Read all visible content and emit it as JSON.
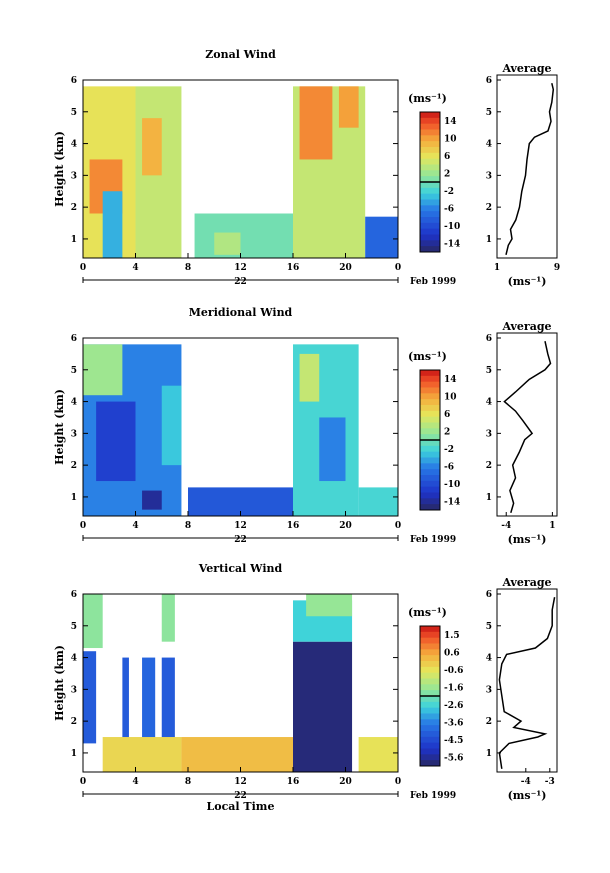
{
  "chart_data": [
    {
      "type": "heatmap",
      "title": "Zonal Wind",
      "ylabel": "Height (km)",
      "xlabel": "",
      "date_label": "22",
      "month_label": "Feb 1999",
      "x_ticks": [
        "0",
        "4",
        "8",
        "12",
        "16",
        "20",
        "0"
      ],
      "xlim": [
        0,
        24
      ],
      "y_ticks": [
        "1",
        "2",
        "3",
        "4",
        "5",
        "6"
      ],
      "ylim": [
        0.4,
        6
      ],
      "colorbar": {
        "unit": "(ms⁻¹)",
        "ticks": [
          "14",
          "10",
          "6",
          "2",
          "-2",
          "-6",
          "-10",
          "-14"
        ],
        "vmin": -16,
        "vmax": 16
      },
      "data_blocks": [
        {
          "x0": 0,
          "x1": 4,
          "y0": 0.4,
          "y1": 5.8,
          "value": 6
        },
        {
          "x0": 0.5,
          "x1": 3,
          "y0": 1.8,
          "y1": 3.5,
          "value": 11
        },
        {
          "x0": 1.5,
          "x1": 3,
          "y0": 0.4,
          "y1": 2.5,
          "value": -4
        },
        {
          "x0": 4,
          "x1": 7.5,
          "y0": 0.4,
          "y1": 5.8,
          "value": 4
        },
        {
          "x0": 4.5,
          "x1": 6,
          "y0": 3,
          "y1": 4.8,
          "value": 9
        },
        {
          "x0": 8.5,
          "x1": 16,
          "y0": 0.4,
          "y1": 1.8,
          "value": 0
        },
        {
          "x0": 10,
          "x1": 12,
          "y0": 0.5,
          "y1": 1.2,
          "value": 3
        },
        {
          "x0": 16,
          "x1": 21.5,
          "y0": 0.4,
          "y1": 5.8,
          "value": 4
        },
        {
          "x0": 16.5,
          "x1": 19,
          "y0": 3.5,
          "y1": 5.8,
          "value": 11
        },
        {
          "x0": 19.5,
          "x1": 21,
          "y0": 4.5,
          "y1": 5.8,
          "value": 10
        },
        {
          "x0": 21.5,
          "x1": 24,
          "y0": 0.4,
          "y1": 1.7,
          "value": -8
        }
      ],
      "profile": {
        "title": "Average",
        "xlabel": "(ms⁻¹)",
        "x_ticks": [
          "1",
          "9"
        ],
        "xlim": [
          1,
          9
        ],
        "y_ticks": [
          "1",
          "2",
          "3",
          "4",
          "5",
          "6"
        ],
        "ylim": [
          0.4,
          6
        ],
        "points": [
          [
            2.2,
            0.5
          ],
          [
            2.5,
            0.8
          ],
          [
            3.0,
            1.0
          ],
          [
            2.8,
            1.3
          ],
          [
            3.5,
            1.6
          ],
          [
            4.0,
            2.0
          ],
          [
            4.3,
            2.5
          ],
          [
            4.8,
            3.0
          ],
          [
            5.0,
            3.5
          ],
          [
            5.3,
            4.0
          ],
          [
            6.0,
            4.2
          ],
          [
            7.8,
            4.4
          ],
          [
            8.2,
            4.7
          ],
          [
            8.0,
            5.0
          ],
          [
            8.3,
            5.3
          ],
          [
            8.5,
            5.7
          ],
          [
            8.3,
            5.9
          ]
        ]
      }
    },
    {
      "type": "heatmap",
      "title": "Meridional Wind",
      "ylabel": "Height (km)",
      "xlabel": "",
      "date_label": "22",
      "month_label": "Feb 1999",
      "x_ticks": [
        "0",
        "4",
        "8",
        "12",
        "16",
        "20",
        "0"
      ],
      "xlim": [
        0,
        24
      ],
      "y_ticks": [
        "1",
        "2",
        "3",
        "4",
        "5",
        "6"
      ],
      "ylim": [
        0.4,
        6
      ],
      "colorbar": {
        "unit": "(ms⁻¹)",
        "ticks": [
          "14",
          "10",
          "6",
          "2",
          "-2",
          "-6",
          "-10",
          "-14"
        ],
        "vmin": -16,
        "vmax": 16
      },
      "data_blocks": [
        {
          "x0": 0,
          "x1": 7.5,
          "y0": 0.4,
          "y1": 5.8,
          "value": -6
        },
        {
          "x0": 0,
          "x1": 3,
          "y0": 4.2,
          "y1": 5.8,
          "value": 2
        },
        {
          "x0": 1,
          "x1": 4,
          "y0": 1.5,
          "y1": 4.0,
          "value": -11
        },
        {
          "x0": 4.5,
          "x1": 6,
          "y0": 0.6,
          "y1": 1.2,
          "value": -14
        },
        {
          "x0": 6,
          "x1": 7.5,
          "y0": 2,
          "y1": 4.5,
          "value": -3
        },
        {
          "x0": 8,
          "x1": 16,
          "y0": 0.4,
          "y1": 1.3,
          "value": -9
        },
        {
          "x0": 16,
          "x1": 21,
          "y0": 0.4,
          "y1": 5.8,
          "value": -2
        },
        {
          "x0": 16.5,
          "x1": 18,
          "y0": 4.0,
          "y1": 5.5,
          "value": 4
        },
        {
          "x0": 18,
          "x1": 20,
          "y0": 1.5,
          "y1": 3.5,
          "value": -6
        },
        {
          "x0": 21,
          "x1": 24,
          "y0": 0.4,
          "y1": 1.3,
          "value": -2
        }
      ],
      "profile": {
        "title": "Average",
        "xlabel": "(ms⁻¹)",
        "x_ticks": [
          "-4",
          "1"
        ],
        "xlim": [
          -5,
          1.5
        ],
        "y_ticks": [
          "1",
          "2",
          "3",
          "4",
          "5",
          "6"
        ],
        "ylim": [
          0.4,
          6
        ],
        "points": [
          [
            -3.5,
            0.5
          ],
          [
            -3.2,
            0.8
          ],
          [
            -3.6,
            1.2
          ],
          [
            -3.0,
            1.6
          ],
          [
            -3.3,
            2.0
          ],
          [
            -2.6,
            2.4
          ],
          [
            -2.0,
            2.8
          ],
          [
            -1.2,
            3.0
          ],
          [
            -2.2,
            3.4
          ],
          [
            -3.0,
            3.7
          ],
          [
            -4.2,
            4.0
          ],
          [
            -3.0,
            4.3
          ],
          [
            -1.5,
            4.7
          ],
          [
            0.2,
            5.0
          ],
          [
            0.8,
            5.2
          ],
          [
            0.5,
            5.5
          ],
          [
            0.2,
            5.9
          ]
        ]
      }
    },
    {
      "type": "heatmap",
      "title": "Vertical Wind",
      "ylabel": "Height (km)",
      "xlabel": "Local Time",
      "date_label": "22",
      "month_label": "Feb 1999",
      "x_ticks": [
        "0",
        "4",
        "8",
        "12",
        "16",
        "20",
        "0"
      ],
      "xlim": [
        0,
        24
      ],
      "y_ticks": [
        "1",
        "2",
        "3",
        "4",
        "5",
        "6"
      ],
      "ylim": [
        0.4,
        6
      ],
      "colorbar": {
        "unit": "(ms⁻¹)",
        "ticks": [
          "1.5",
          "0.6",
          "-0.6",
          "-1.6",
          "-2.6",
          "-3.6",
          "-4.5",
          "-5.6"
        ],
        "vmin": -6,
        "vmax": 2
      },
      "data_blocks": [
        {
          "x0": 0,
          "x1": 1.5,
          "y0": 4.3,
          "y1": 6,
          "value": -1.7
        },
        {
          "x0": 0,
          "x1": 1,
          "y0": 1.3,
          "y1": 4.2,
          "value": -4.2
        },
        {
          "x0": 1.5,
          "x1": 7.5,
          "y0": 0.4,
          "y1": 1.5,
          "value": -0.3
        },
        {
          "x0": 3,
          "x1": 3.5,
          "y0": 1.5,
          "y1": 4.0,
          "value": -4.2
        },
        {
          "x0": 4.5,
          "x1": 5.5,
          "y0": 1.5,
          "y1": 4.0,
          "value": -4.0
        },
        {
          "x0": 6,
          "x1": 7,
          "y0": 1.5,
          "y1": 4.0,
          "value": -4.2
        },
        {
          "x0": 6,
          "x1": 7,
          "y0": 4.5,
          "y1": 6,
          "value": -1.7
        },
        {
          "x0": 7.5,
          "x1": 16,
          "y0": 0.4,
          "y1": 1.5,
          "value": 0.1
        },
        {
          "x0": 16,
          "x1": 20.5,
          "y0": 0.4,
          "y1": 4.5,
          "value": -5.8
        },
        {
          "x0": 16,
          "x1": 20.5,
          "y0": 4.5,
          "y1": 5.8,
          "value": -2.6
        },
        {
          "x0": 17,
          "x1": 20.5,
          "y0": 5.3,
          "y1": 6,
          "value": -1.6
        },
        {
          "x0": 21,
          "x1": 24,
          "y0": 0.4,
          "y1": 1.5,
          "value": -0.5
        }
      ],
      "profile": {
        "title": "Average",
        "xlabel": "(ms⁻¹)",
        "x_ticks": [
          "-4",
          "-3"
        ],
        "xlim": [
          -5.2,
          -2.7
        ],
        "y_ticks": [
          "1",
          "2",
          "3",
          "4",
          "5",
          "6"
        ],
        "ylim": [
          0.4,
          6
        ],
        "points": [
          [
            -5.0,
            0.5
          ],
          [
            -5.1,
            1.0
          ],
          [
            -4.7,
            1.3
          ],
          [
            -3.5,
            1.5
          ],
          [
            -3.2,
            1.6
          ],
          [
            -4.5,
            1.8
          ],
          [
            -4.2,
            2.0
          ],
          [
            -4.9,
            2.3
          ],
          [
            -5.0,
            2.8
          ],
          [
            -5.1,
            3.3
          ],
          [
            -5.0,
            3.8
          ],
          [
            -4.8,
            4.1
          ],
          [
            -3.6,
            4.3
          ],
          [
            -3.1,
            4.6
          ],
          [
            -2.9,
            5.0
          ],
          [
            -2.9,
            5.5
          ],
          [
            -2.8,
            5.9
          ]
        ]
      }
    }
  ]
}
